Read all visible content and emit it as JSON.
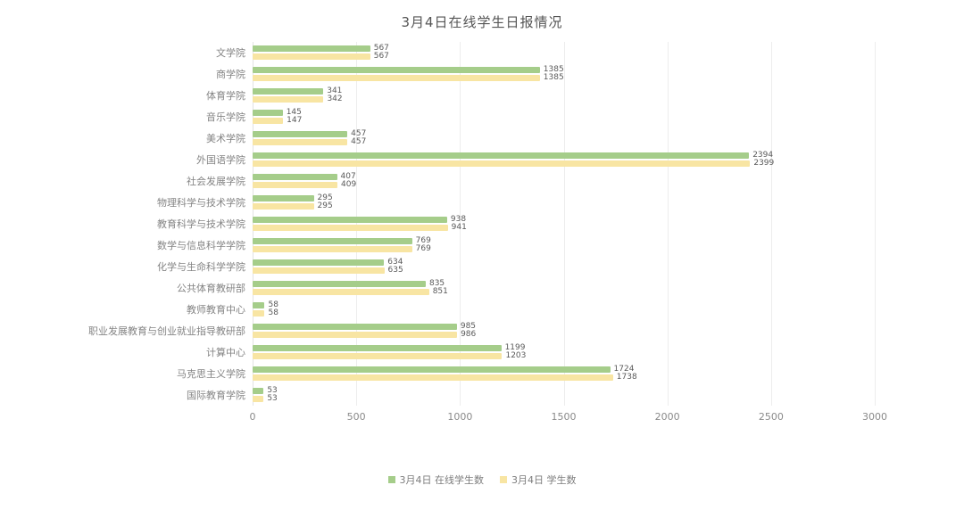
{
  "chart_data": {
    "type": "bar",
    "orientation": "horizontal",
    "title": "3月4日在线学生日报情况",
    "categories": [
      "文学院",
      "商学院",
      "体育学院",
      "音乐学院",
      "美术学院",
      "外国语学院",
      "社会发展学院",
      "物理科学与技术学院",
      "教育科学与技术学院",
      "数学与信息科学学院",
      "化学与生命科学学院",
      "公共体育教研部",
      "教师教育中心",
      "职业发展教育与创业就业指导教研部",
      "计算中心",
      "马克思主义学院",
      "国际教育学院"
    ],
    "series": [
      {
        "name": "3月4日 在线学生数",
        "color": "#a5cd8a",
        "values": [
          567,
          1385,
          341,
          145,
          457,
          2394,
          407,
          295,
          938,
          769,
          634,
          835,
          58,
          985,
          1199,
          1724,
          53
        ]
      },
      {
        "name": "3月4日 学生数",
        "color": "#f8e5a3",
        "values": [
          567,
          1385,
          342,
          147,
          457,
          2399,
          409,
          295,
          941,
          769,
          635,
          851,
          58,
          986,
          1203,
          1738,
          53
        ]
      }
    ],
    "xlabel": "",
    "ylabel": "",
    "xlim": [
      0,
      3000
    ],
    "x_ticks": [
      0,
      500,
      1000,
      1500,
      2000,
      2500,
      3000
    ],
    "grid": true,
    "legend_position": "bottom",
    "data_labels": true
  },
  "colors": {
    "background": "#ffffff",
    "gridline": "#ededed",
    "title_text": "#555555",
    "category_text": "#848484",
    "value_text": "#595959",
    "tick_text": "#8a8a8a",
    "legend_text": "#7d7d7d"
  }
}
